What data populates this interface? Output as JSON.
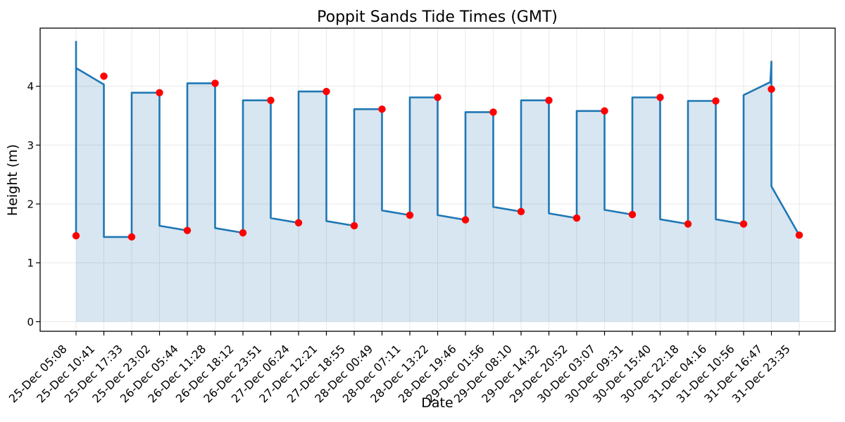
{
  "chart_data": {
    "type": "line",
    "title": "Poppit Sands Tide Times (GMT)",
    "xlabel": "Date",
    "ylabel": "Height (m)",
    "categories": [
      "25-Dec 05:08",
      "25-Dec 10:41",
      "25-Dec 17:33",
      "25-Dec 23:02",
      "26-Dec 05:44",
      "26-Dec 11:28",
      "26-Dec 18:12",
      "26-Dec 23:51",
      "27-Dec 06:24",
      "27-Dec 12:21",
      "27-Dec 18:55",
      "28-Dec 00:49",
      "28-Dec 07:11",
      "28-Dec 13:22",
      "28-Dec 19:46",
      "29-Dec 01:56",
      "29-Dec 08:10",
      "29-Dec 14:32",
      "29-Dec 20:52",
      "30-Dec 03:07",
      "30-Dec 09:31",
      "30-Dec 15:40",
      "30-Dec 22:18",
      "31-Dec 04:16",
      "31-Dec 10:56",
      "31-Dec 16:47",
      "31-Dec 23:35"
    ],
    "values": [
      1.46,
      4.17,
      1.44,
      3.89,
      1.55,
      4.05,
      1.51,
      3.76,
      1.68,
      3.91,
      1.63,
      3.61,
      1.81,
      3.81,
      1.73,
      3.56,
      1.87,
      3.76,
      1.76,
      3.58,
      1.82,
      3.81,
      1.66,
      3.75,
      1.66,
      3.95,
      1.47
    ],
    "units": "m",
    "yticks": [
      0,
      1,
      2,
      3,
      4
    ],
    "ylim": [
      -0.17,
      4.99
    ],
    "grid": true,
    "legend": false,
    "style": {
      "line_color": "#1f77b4",
      "area_fill": "rgba(31,119,180,0.18)",
      "marker_color": "#ff0000",
      "grid_color": "#e8e8e8",
      "line_shape": "step-pre"
    },
    "line_shape_overrides": {
      "start_spike_top_m": 4.77,
      "first_rise_top_m": 4.31,
      "first_rise_end_m": 4.03,
      "final_rise_top_m": 3.85,
      "final_rise_end_m": 4.07,
      "end_spike_top_m": 4.42,
      "end_spike_drop_m": 2.3,
      "fall_landing_offset_m": 0.08
    }
  }
}
